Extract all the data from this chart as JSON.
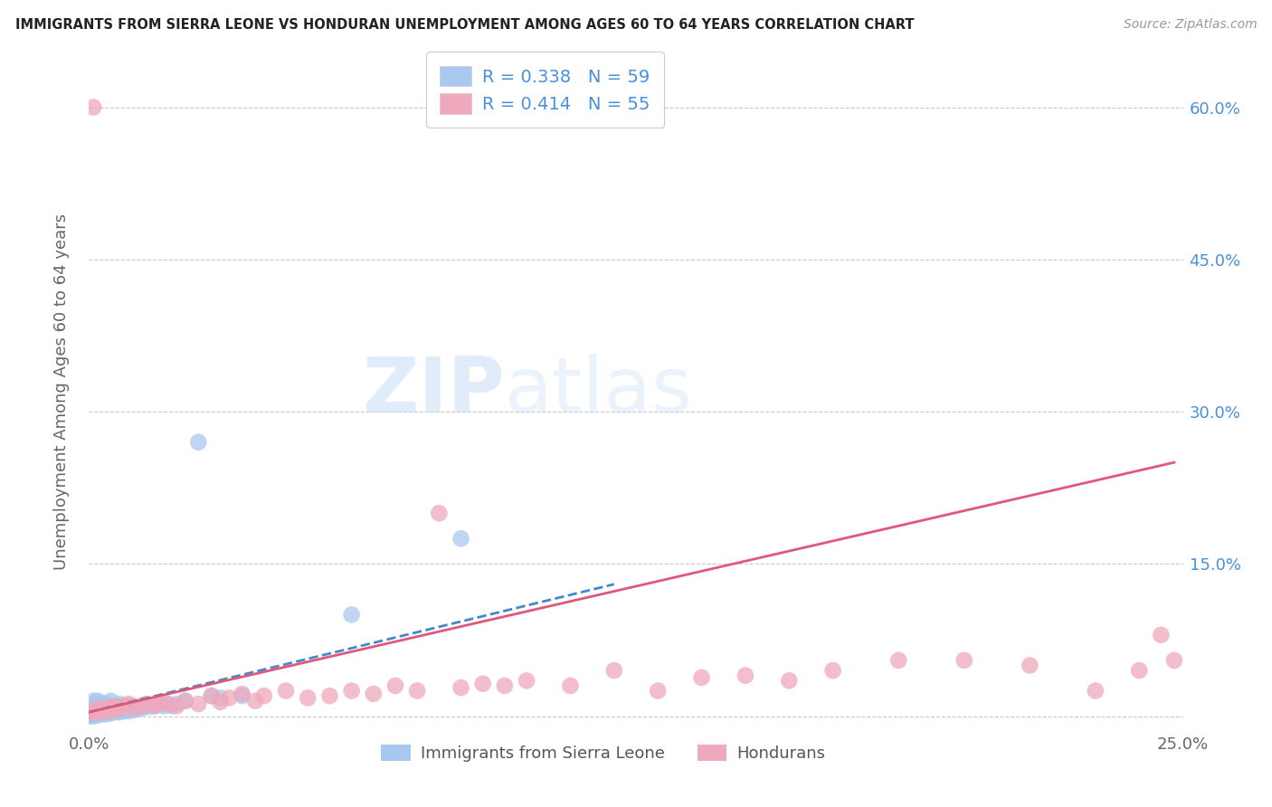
{
  "title": "IMMIGRANTS FROM SIERRA LEONE VS HONDURAN UNEMPLOYMENT AMONG AGES 60 TO 64 YEARS CORRELATION CHART",
  "source": "Source: ZipAtlas.com",
  "ylabel": "Unemployment Among Ages 60 to 64 years",
  "xlabel_blue": "Immigrants from Sierra Leone",
  "xlabel_pink": "Hondurans",
  "xlim": [
    0.0,
    0.25
  ],
  "ylim": [
    -0.01,
    0.65
  ],
  "x_ticks": [
    0.0,
    0.05,
    0.1,
    0.15,
    0.2,
    0.25
  ],
  "x_tick_labels": [
    "0.0%",
    "",
    "",
    "",
    "",
    "25.0%"
  ],
  "y_ticks": [
    0.0,
    0.15,
    0.3,
    0.45,
    0.6
  ],
  "y_tick_labels_right": [
    "",
    "15.0%",
    "30.0%",
    "45.0%",
    "60.0%"
  ],
  "legend_R_blue": "R = 0.338",
  "legend_N_blue": "N = 59",
  "legend_R_pink": "R = 0.414",
  "legend_N_pink": "N = 55",
  "blue_color": "#a8c8f0",
  "pink_color": "#f0a8bc",
  "blue_line_color": "#4488cc",
  "pink_line_color": "#e05878",
  "blue_scatter_x": [
    0.0,
    0.0,
    0.0,
    0.0,
    0.001,
    0.001,
    0.001,
    0.001,
    0.001,
    0.001,
    0.001,
    0.002,
    0.002,
    0.002,
    0.002,
    0.002,
    0.002,
    0.003,
    0.003,
    0.003,
    0.003,
    0.003,
    0.004,
    0.004,
    0.004,
    0.004,
    0.005,
    0.005,
    0.005,
    0.005,
    0.006,
    0.006,
    0.006,
    0.007,
    0.007,
    0.007,
    0.008,
    0.008,
    0.009,
    0.009,
    0.01,
    0.01,
    0.011,
    0.012,
    0.013,
    0.014,
    0.015,
    0.016,
    0.017,
    0.018,
    0.019,
    0.02,
    0.022,
    0.025,
    0.028,
    0.03,
    0.035,
    0.06,
    0.085
  ],
  "blue_scatter_y": [
    0.0,
    0.002,
    0.004,
    0.007,
    0.0,
    0.002,
    0.004,
    0.006,
    0.008,
    0.01,
    0.015,
    0.001,
    0.003,
    0.005,
    0.008,
    0.012,
    0.015,
    0.002,
    0.004,
    0.006,
    0.01,
    0.013,
    0.002,
    0.004,
    0.007,
    0.012,
    0.003,
    0.005,
    0.008,
    0.015,
    0.004,
    0.006,
    0.01,
    0.004,
    0.007,
    0.012,
    0.005,
    0.008,
    0.005,
    0.01,
    0.006,
    0.01,
    0.007,
    0.008,
    0.009,
    0.01,
    0.01,
    0.012,
    0.01,
    0.012,
    0.01,
    0.012,
    0.015,
    0.27,
    0.02,
    0.018,
    0.02,
    0.1,
    0.175
  ],
  "pink_scatter_x": [
    0.0,
    0.001,
    0.001,
    0.002,
    0.002,
    0.003,
    0.004,
    0.005,
    0.005,
    0.006,
    0.006,
    0.007,
    0.008,
    0.009,
    0.01,
    0.012,
    0.013,
    0.015,
    0.016,
    0.018,
    0.02,
    0.022,
    0.025,
    0.028,
    0.03,
    0.032,
    0.035,
    0.038,
    0.04,
    0.045,
    0.05,
    0.055,
    0.06,
    0.065,
    0.07,
    0.075,
    0.08,
    0.085,
    0.09,
    0.095,
    0.1,
    0.11,
    0.12,
    0.13,
    0.14,
    0.15,
    0.16,
    0.17,
    0.185,
    0.2,
    0.215,
    0.23,
    0.24,
    0.245,
    0.248
  ],
  "pink_scatter_y": [
    0.003,
    0.005,
    0.6,
    0.004,
    0.008,
    0.006,
    0.005,
    0.007,
    0.01,
    0.006,
    0.009,
    0.008,
    0.01,
    0.012,
    0.008,
    0.01,
    0.012,
    0.01,
    0.013,
    0.012,
    0.01,
    0.015,
    0.012,
    0.02,
    0.014,
    0.018,
    0.022,
    0.015,
    0.02,
    0.025,
    0.018,
    0.02,
    0.025,
    0.022,
    0.03,
    0.025,
    0.2,
    0.028,
    0.032,
    0.03,
    0.035,
    0.03,
    0.045,
    0.025,
    0.038,
    0.04,
    0.035,
    0.045,
    0.055,
    0.055,
    0.05,
    0.025,
    0.045,
    0.08,
    0.055
  ],
  "blue_line_x_start": 0.0,
  "blue_line_x_end": 0.12,
  "blue_line_y_start": 0.004,
  "blue_line_y_end": 0.13,
  "pink_line_x_start": 0.0,
  "pink_line_x_end": 0.248,
  "pink_line_y_start": 0.004,
  "pink_line_y_end": 0.25
}
